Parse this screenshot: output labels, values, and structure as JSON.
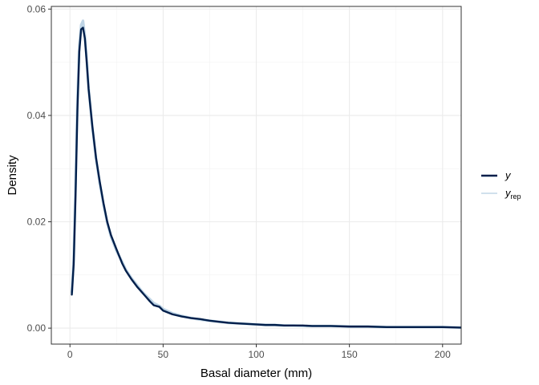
{
  "chart_data": {
    "type": "line",
    "title": "",
    "xlabel": "Basal diameter (mm)",
    "ylabel": "Density",
    "xlim": [
      -10,
      210
    ],
    "ylim": [
      -0.003,
      0.0605
    ],
    "x_ticks": [
      0,
      50,
      100,
      150,
      200
    ],
    "x_tick_labels": [
      "0",
      "50",
      "100",
      "150",
      "200"
    ],
    "y_ticks": [
      0,
      0.02,
      0.04,
      0.06
    ],
    "y_tick_labels": [
      "0.00",
      "0.02",
      "0.04",
      "0.06"
    ],
    "grid": true,
    "legend_position": "right",
    "legend": [
      {
        "label": "y",
        "sub": "",
        "color": "#011f4b"
      },
      {
        "label": "y",
        "sub": "rep",
        "color": "#b3cde0"
      }
    ],
    "series": [
      {
        "name": "y",
        "color": "#011f4b",
        "x": [
          1,
          2,
          3,
          4,
          5,
          6,
          7,
          8,
          9,
          10,
          12,
          14,
          16,
          18,
          20,
          22,
          25,
          28,
          30,
          33,
          36,
          38,
          40,
          43,
          45,
          48,
          50,
          55,
          60,
          65,
          70,
          75,
          80,
          85,
          90,
          95,
          100,
          105,
          110,
          115,
          120,
          125,
          130,
          140,
          150,
          160,
          170,
          180,
          190,
          200,
          210
        ],
        "y": [
          0.0063,
          0.012,
          0.025,
          0.041,
          0.052,
          0.0562,
          0.0565,
          0.0545,
          0.05,
          0.045,
          0.038,
          0.032,
          0.0275,
          0.0235,
          0.02,
          0.0175,
          0.0148,
          0.0122,
          0.0108,
          0.0092,
          0.0078,
          0.007,
          0.0062,
          0.005,
          0.0043,
          0.004,
          0.0033,
          0.0026,
          0.0022,
          0.0019,
          0.0017,
          0.0014,
          0.0012,
          0.001,
          0.0009,
          0.0008,
          0.0007,
          0.0006,
          0.0006,
          0.0005,
          0.0005,
          0.0005,
          0.0004,
          0.0004,
          0.0003,
          0.0003,
          0.0002,
          0.0002,
          0.0002,
          0.0002,
          0.0001
        ]
      },
      {
        "name": "y_rep",
        "color": "#b3cde0",
        "x": [
          1,
          2,
          3,
          4,
          5,
          6,
          7,
          8,
          9,
          10,
          12,
          14,
          16,
          18,
          20,
          22,
          25,
          28,
          30,
          33,
          36,
          38,
          40,
          43,
          45,
          48,
          50,
          55,
          60,
          65,
          70,
          75,
          80,
          85,
          90,
          95,
          100,
          105,
          110,
          115,
          120,
          125,
          130,
          140,
          150,
          160,
          170,
          180,
          190,
          200,
          210
        ],
        "y": [
          0.0068,
          0.013,
          0.027,
          0.043,
          0.053,
          0.057,
          0.0578,
          0.055,
          0.0505,
          0.0452,
          0.0378,
          0.0318,
          0.0272,
          0.0232,
          0.0198,
          0.0172,
          0.0145,
          0.0125,
          0.011,
          0.0094,
          0.0081,
          0.0072,
          0.0064,
          0.0054,
          0.0047,
          0.0042,
          0.0036,
          0.0028,
          0.0023,
          0.0019,
          0.0016,
          0.0014,
          0.0012,
          0.001,
          0.0009,
          0.0008,
          0.0007,
          0.0006,
          0.0006,
          0.0005,
          0.0005,
          0.0004,
          0.0004,
          0.0004,
          0.0003,
          0.0003,
          0.0002,
          0.0002,
          0.0002,
          0.0002,
          0.0001
        ]
      }
    ]
  }
}
